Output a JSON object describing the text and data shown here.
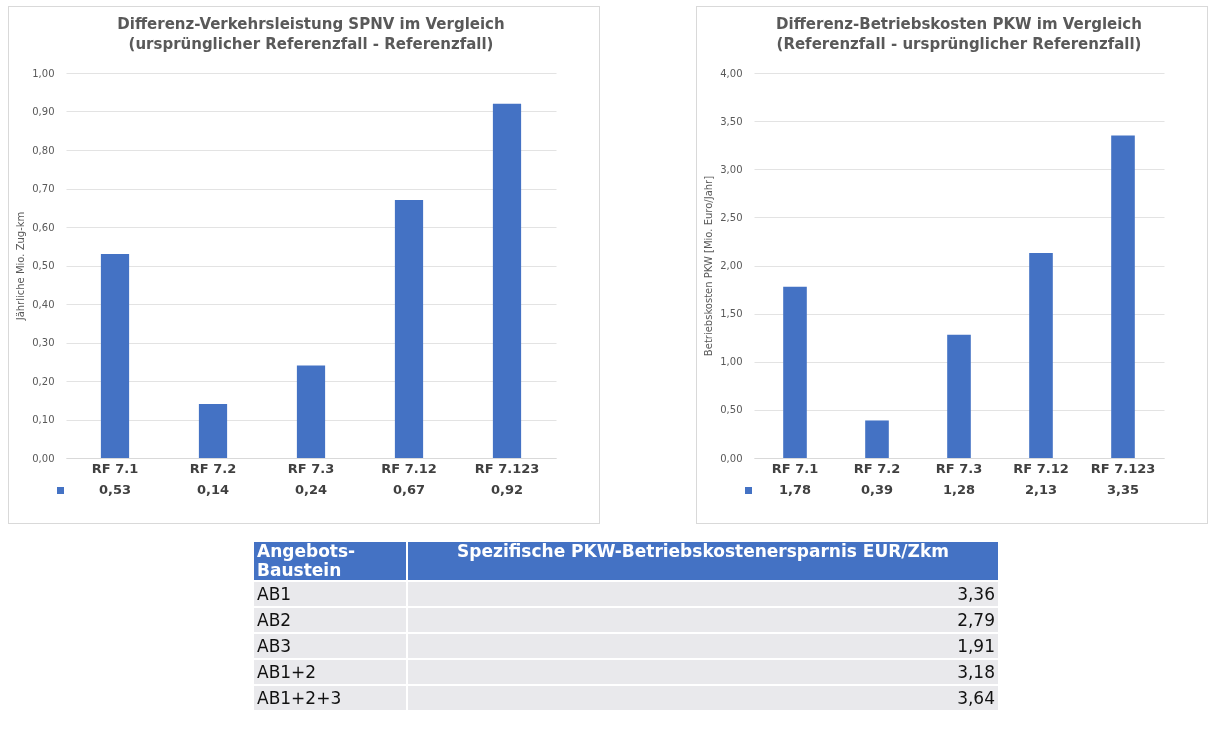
{
  "chart_data": [
    {
      "type": "bar",
      "title": "Differenz-Verkehrsleistung SPNV im Vergleich",
      "subtitle": "(ursprünglicher Referenzfall - Referenzfall)",
      "ylabel": "Jährliche Mio. Zug-km",
      "categories": [
        "RF 7.1",
        "RF 7.2",
        "RF 7.3",
        "RF 7.12",
        "RF 7.123"
      ],
      "series": [
        {
          "color": "#4472c4",
          "values": [
            0.53,
            0.14,
            0.24,
            0.67,
            0.92
          ],
          "value_labels": [
            "0,53",
            "0,14",
            "0,24",
            "0,67",
            "0,92"
          ]
        }
      ],
      "ylim": [
        0,
        1
      ],
      "yticks": [
        {
          "value": 0,
          "label": "0,00"
        },
        {
          "value": 0.1,
          "label": "0,10"
        },
        {
          "value": 0.2,
          "label": "0,20"
        },
        {
          "value": 0.3,
          "label": "0,30"
        },
        {
          "value": 0.4,
          "label": "0,40"
        },
        {
          "value": 0.5,
          "label": "0,50"
        },
        {
          "value": 0.6,
          "label": "0,60"
        },
        {
          "value": 0.7,
          "label": "0,70"
        },
        {
          "value": 0.8,
          "label": "0,80"
        },
        {
          "value": 0.9,
          "label": "0,90"
        },
        {
          "value": 1,
          "label": "1,00"
        }
      ],
      "grid": "y"
    },
    {
      "type": "bar",
      "title": "Differenz-Betriebskosten PKW im Vergleich",
      "subtitle": "(Referenzfall - ursprünglicher Referenzfall)",
      "ylabel": "Betriebskosten PKW [Mio. Euro/Jahr]",
      "categories": [
        "RF 7.1",
        "RF 7.2",
        "RF 7.3",
        "RF 7.12",
        "RF 7.123"
      ],
      "series": [
        {
          "color": "#4472c4",
          "values": [
            1.78,
            0.39,
            1.28,
            2.13,
            3.35
          ],
          "value_labels": [
            "1,78",
            "0,39",
            "1,28",
            "2,13",
            "3,35"
          ]
        }
      ],
      "ylim": [
        0,
        4
      ],
      "yticks": [
        {
          "value": 0,
          "label": "0,00"
        },
        {
          "value": 0.5,
          "label": "0,50"
        },
        {
          "value": 1,
          "label": "1,00"
        },
        {
          "value": 1.5,
          "label": "1,50"
        },
        {
          "value": 2,
          "label": "2,00"
        },
        {
          "value": 2.5,
          "label": "2,50"
        },
        {
          "value": 3,
          "label": "3,00"
        },
        {
          "value": 3.5,
          "label": "3,50"
        },
        {
          "value": 4,
          "label": "4,00"
        }
      ],
      "grid": "y"
    },
    {
      "type": "other",
      "xlabel": "Angebots-Baustein",
      "ylabel": "Spezifische PKW-Betriebskostenersparnis EUR/Zkm",
      "categories": [
        "AB1",
        "AB2",
        "AB3",
        "AB1+2",
        "AB1+2+3"
      ],
      "value_labels": [
        "3,36",
        "2,79",
        "1,91",
        "3,18",
        "3,64"
      ]
    }
  ]
}
